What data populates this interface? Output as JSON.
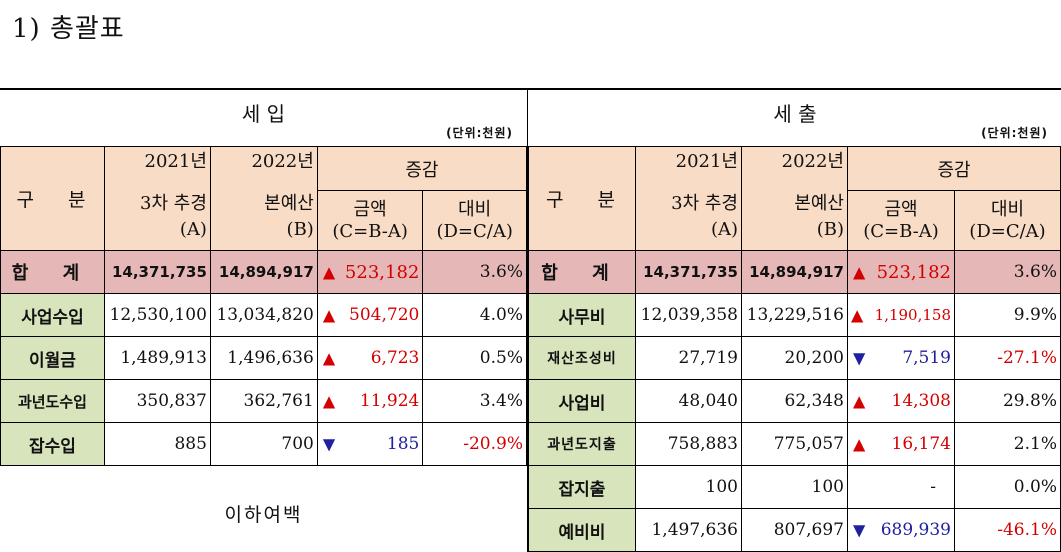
{
  "doc_title": "1) 총괄표",
  "income": {
    "title": "세      입",
    "unit": "(단위:천원)",
    "headers": {
      "category": "구 분",
      "y2021_line1": "2021년",
      "y2021_line2": "3차 추경",
      "y2021_line3": "(A)",
      "y2022_line1": "2022년",
      "y2022_line2": "본예산",
      "y2022_line3": "(B)",
      "change": "증감",
      "amount_line1": "금액",
      "amount_line2": "(C=B-A)",
      "ratio_line1": "대비",
      "ratio_line2": "(D=C/A)"
    },
    "total": {
      "category": "합 계",
      "a": "14,371,735",
      "b": "14,894,917",
      "arrow": "▲",
      "c": "523,182",
      "d": "3.6%"
    },
    "rows": [
      {
        "category": "사업수입",
        "a": "12,530,100",
        "b": "13,034,820",
        "arrow": "▲",
        "c": "504,720",
        "d": "4.0%"
      },
      {
        "category": "이월금",
        "a": "1,489,913",
        "b": "1,496,636",
        "arrow": "▲",
        "c": "6,723",
        "d": "0.5%"
      },
      {
        "category": "과년도수입",
        "a": "350,837",
        "b": "362,761",
        "arrow": "▲",
        "c": "11,924",
        "d": "3.4%"
      },
      {
        "category": "잡수입",
        "a": "885",
        "b": "700",
        "arrow": "▼",
        "c": "185",
        "d": "-20.9%"
      }
    ],
    "blank_note": "이하여백"
  },
  "expense": {
    "title": "세      출",
    "unit": "(단위:천원)",
    "headers": {
      "category": "구 분",
      "y2021_line1": "2021년",
      "y2021_line2": "3차 추경",
      "y2021_line3": "(A)",
      "y2022_line1": "2022년",
      "y2022_line2": "본예산",
      "y2022_line3": "(B)",
      "change": "증감",
      "amount_line1": "금액",
      "amount_line2": "(C=B-A)",
      "ratio_line1": "대비",
      "ratio_line2": "(D=C/A)"
    },
    "total": {
      "category": "합 계",
      "a": "14,371,735",
      "b": "14,894,917",
      "arrow": "▲",
      "c": "523,182",
      "d": "3.6%"
    },
    "rows": [
      {
        "category": "사무비",
        "a": "12,039,358",
        "b": "13,229,516",
        "arrow": "▲",
        "c": "1,190,158",
        "d": "9.9%"
      },
      {
        "category": "재산조성비",
        "a": "27,719",
        "b": "20,200",
        "arrow": "▼",
        "c": "7,519",
        "d": "-27.1%"
      },
      {
        "category": "사업비",
        "a": "48,040",
        "b": "62,348",
        "arrow": "▲",
        "c": "14,308",
        "d": "29.8%"
      },
      {
        "category": "과년도지출",
        "a": "758,883",
        "b": "775,057",
        "arrow": "▲",
        "c": "16,174",
        "d": "2.1%"
      },
      {
        "category": "잡지출",
        "a": "100",
        "b": "100",
        "arrow": "",
        "c": "-",
        "d": "0.0%"
      },
      {
        "category": "예비비",
        "a": "1,497,636",
        "b": "807,697",
        "arrow": "▼",
        "c": "689,939",
        "d": "-46.1%"
      }
    ]
  },
  "colors": {
    "header_bg": "#f8dcc6",
    "total_bg": "#e5b8b7",
    "category_bg": "#d7e4bc",
    "increase": "#d40000",
    "decrease": "#2020a0"
  }
}
